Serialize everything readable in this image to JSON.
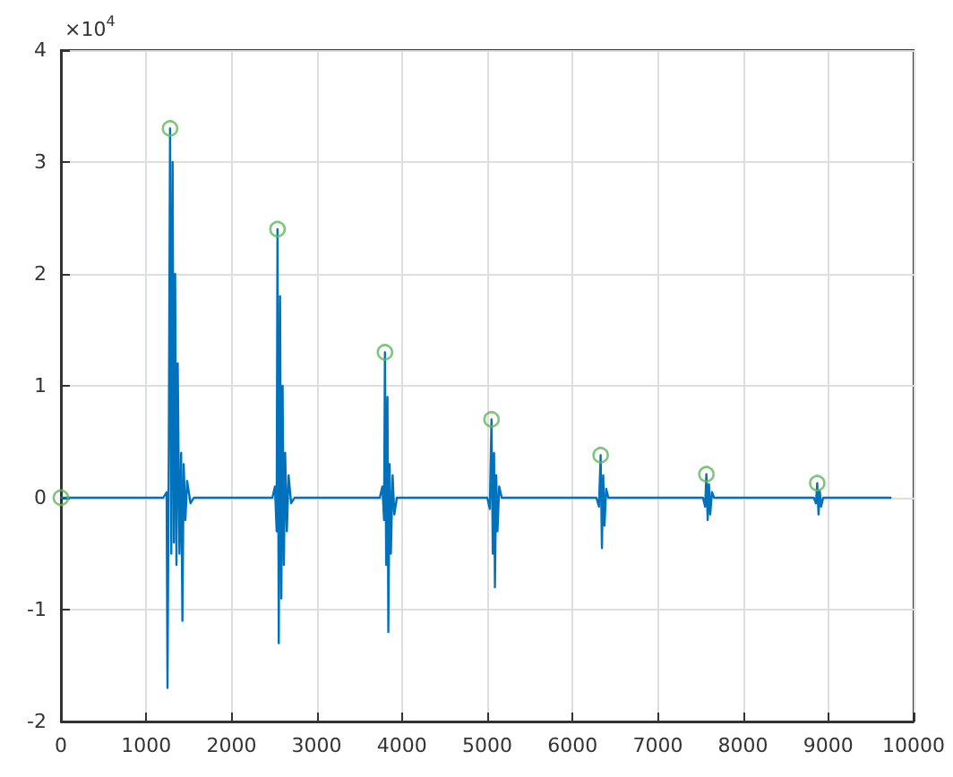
{
  "chart_data": {
    "type": "line",
    "annotations": [
      "×10$^{4}$"
    ],
    "xlim": [
      0,
      10000
    ],
    "xticks": [
      0,
      1000,
      2000,
      3000,
      4000,
      5000,
      6000,
      7000,
      8000,
      9000,
      10000
    ],
    "ylim": [
      -2,
      4
    ],
    "yticks": [
      -2,
      -1,
      0,
      1,
      2,
      3,
      4
    ],
    "grid": true,
    "series": [
      {
        "color": "#0072bd",
        "marker": "none",
        "line_style": "solid",
        "x": [
          0,
          1200,
          1240,
          1250,
          1265,
          1280,
          1295,
          1310,
          1325,
          1340,
          1355,
          1370,
          1390,
          1410,
          1425,
          1440,
          1460,
          1480,
          1520,
          1560,
          2480,
          2510,
          2530,
          2540,
          2555,
          2570,
          2585,
          2600,
          2615,
          2630,
          2650,
          2670,
          2700,
          2740,
          3740,
          3770,
          3790,
          3800,
          3815,
          3830,
          3840,
          3855,
          3870,
          3890,
          3910,
          3940,
          5000,
          5030,
          5050,
          5065,
          5080,
          5090,
          5105,
          5120,
          5140,
          5170,
          6280,
          6310,
          6330,
          6345,
          6360,
          6375,
          6395,
          6420,
          7530,
          7555,
          7570,
          7585,
          7600,
          7615,
          7635,
          7660,
          8830,
          8855,
          8870,
          8885,
          8900,
          8915,
          8940,
          9730
        ],
        "values": [
          0,
          0,
          0.05,
          -1.7,
          0.4,
          3.3,
          -0.5,
          3.0,
          -0.4,
          2.0,
          -0.6,
          1.2,
          -0.5,
          0.4,
          -1.1,
          0.3,
          -0.2,
          0.15,
          -0.05,
          0,
          0,
          0.1,
          -0.3,
          2.4,
          -1.3,
          1.8,
          -0.9,
          1.0,
          -0.6,
          0.4,
          -0.3,
          0.2,
          -0.05,
          0,
          0,
          0.1,
          -0.2,
          1.3,
          -0.6,
          0.9,
          -1.2,
          0.3,
          -0.5,
          0.2,
          -0.15,
          0,
          0,
          -0.1,
          0.7,
          -0.5,
          0.4,
          -0.8,
          0.2,
          -0.3,
          0.1,
          0,
          0,
          -0.08,
          0.38,
          -0.45,
          0.2,
          -0.25,
          0.08,
          0,
          0,
          -0.08,
          0.21,
          -0.2,
          0.12,
          -0.15,
          0.05,
          0,
          0,
          -0.05,
          0.13,
          -0.15,
          0.06,
          -0.08,
          0,
          0
        ]
      },
      {
        "type": "scatter",
        "color": "#5cb85c",
        "marker": "circle",
        "x": [
          0,
          1280,
          2540,
          3800,
          5050,
          6330,
          7570,
          8870
        ],
        "values": [
          0,
          3.3,
          2.4,
          1.3,
          0.7,
          0.38,
          0.21,
          0.13
        ]
      }
    ]
  }
}
